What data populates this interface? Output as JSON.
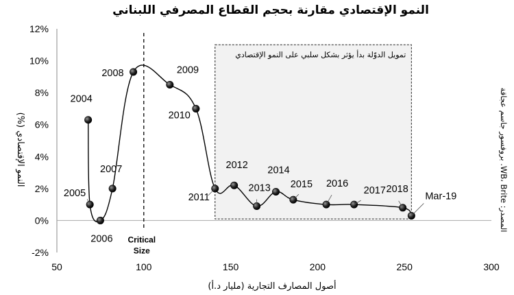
{
  "chart_data": {
    "type": "line",
    "title": "النمو الإقتصادي مقارنة بحجم القطاع المصرفي اللبناني",
    "xlabel": "أصول المصارف التجارية (مليار د.أ)",
    "ylabel": "النمو الإقتصادي (%)",
    "xlim": [
      50,
      300
    ],
    "ylim": [
      -2,
      12
    ],
    "x_ticks": [
      "50",
      "100",
      "150",
      "200",
      "250",
      "300"
    ],
    "y_ticks": [
      "-2%",
      "0%",
      "2%",
      "4%",
      "6%",
      "8%",
      "10%",
      "12%"
    ],
    "grid": false,
    "points": [
      {
        "label": "2004",
        "x": 68,
        "y": 6.3
      },
      {
        "label": "2005",
        "x": 69,
        "y": 1.0
      },
      {
        "label": "2006",
        "x": 75,
        "y": 0.0
      },
      {
        "label": "2007",
        "x": 82,
        "y": 2.0
      },
      {
        "label": "2008",
        "x": 94,
        "y": 9.3
      },
      {
        "label": "2009",
        "x": 115,
        "y": 8.5
      },
      {
        "label": "2010",
        "x": 130,
        "y": 7.0
      },
      {
        "label": "2011",
        "x": 141,
        "y": 2.0
      },
      {
        "label": "2012",
        "x": 152,
        "y": 2.2
      },
      {
        "label": "2013",
        "x": 165,
        "y": 0.9
      },
      {
        "label": "2014",
        "x": 176,
        "y": 1.8
      },
      {
        "label": "2015",
        "x": 186,
        "y": 1.3
      },
      {
        "label": "2016",
        "x": 205,
        "y": 1.0
      },
      {
        "label": "2017",
        "x": 221,
        "y": 1.0
      },
      {
        "label": "2018",
        "x": 249,
        "y": 0.8
      },
      {
        "label": "Mar-19",
        "x": 254,
        "y": 0.3
      }
    ],
    "critical_line": {
      "x": 100,
      "label_line1": "Critical",
      "label_line2": "Size"
    },
    "annotation_box": {
      "x_range": [
        141,
        254
      ],
      "y_range": [
        0.1,
        11.0
      ],
      "text": "تمويل الدوّلة بدأ يؤثر بشكل سلبي على النمو الإقتصادي"
    },
    "source": "المصدر: WB، Brite. بروفسور جاسم عجاقة"
  }
}
